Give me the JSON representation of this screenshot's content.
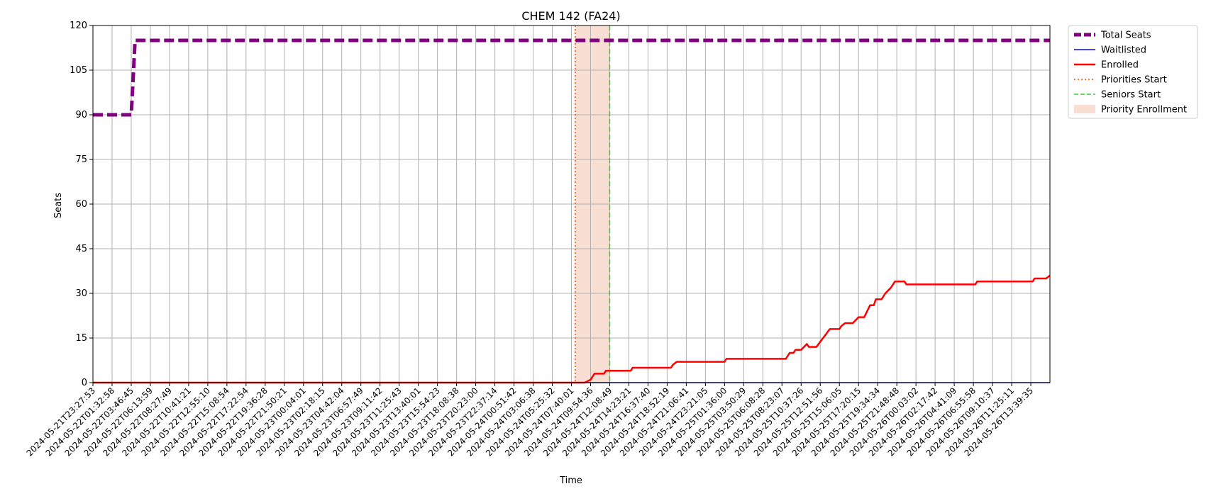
{
  "chart_data": {
    "type": "line",
    "title": "CHEM 142 (FA24)",
    "xlabel": "Time",
    "ylabel": "Seats",
    "ylim": [
      0,
      120
    ],
    "yticks": [
      0,
      15,
      30,
      45,
      60,
      75,
      90,
      105,
      120
    ],
    "grid": true,
    "legend_placement": "outside-top-right",
    "x_tick_labels": [
      "2024-05-21T23:27:53",
      "2024-05-22T01:32:58",
      "2024-05-22T03:46:45",
      "2024-05-22T06:13:59",
      "2024-05-22T08:27:49",
      "2024-05-22T10:41:21",
      "2024-05-22T12:55:10",
      "2024-05-22T15:08:54",
      "2024-05-22T17:22:54",
      "2024-05-22T19:36:28",
      "2024-05-22T21:50:21",
      "2024-05-23T00:04:01",
      "2024-05-23T02:18:15",
      "2024-05-23T04:42:04",
      "2024-05-23T06:57:49",
      "2024-05-23T09:11:42",
      "2024-05-23T11:25:43",
      "2024-05-23T13:40:01",
      "2024-05-23T15:54:23",
      "2024-05-23T18:08:38",
      "2024-05-23T20:23:00",
      "2024-05-23T22:37:14",
      "2024-05-24T00:51:42",
      "2024-05-24T03:06:38",
      "2024-05-24T05:25:32",
      "2024-05-24T07:40:01",
      "2024-05-24T09:54:36",
      "2024-05-24T12:08:49",
      "2024-05-24T14:23:21",
      "2024-05-24T16:37:40",
      "2024-05-24T18:52:19",
      "2024-05-24T21:06:41",
      "2024-05-24T23:21:05",
      "2024-05-25T01:36:00",
      "2024-05-25T03:50:29",
      "2024-05-25T06:08:28",
      "2024-05-25T08:23:07",
      "2024-05-25T10:37:26",
      "2024-05-25T12:51:56",
      "2024-05-25T15:06:05",
      "2024-05-25T17:20:15",
      "2024-05-25T19:34:34",
      "2024-05-25T21:48:48",
      "2024-05-26T00:03:02",
      "2024-05-26T02:17:42",
      "2024-05-26T04:41:09",
      "2024-05-26T06:55:58",
      "2024-05-26T09:10:37",
      "2024-05-26T11:25:11",
      "2024-05-26T13:39:35"
    ],
    "x_extent": [
      0,
      50
    ],
    "series": [
      {
        "name": "Total Seats",
        "color": "#800080",
        "style": "dashed",
        "points": [
          [
            0,
            90
          ],
          [
            2.0,
            90
          ],
          [
            2.2,
            115
          ],
          [
            50,
            115
          ]
        ]
      },
      {
        "name": "Waitlisted",
        "color": "#0000ff",
        "style": "solid",
        "points": [
          [
            0,
            0
          ],
          [
            50,
            0
          ]
        ]
      },
      {
        "name": "Enrolled",
        "color": "#ff0000",
        "style": "solid",
        "points": [
          [
            0,
            0
          ],
          [
            25.7,
            0
          ],
          [
            26.0,
            1
          ],
          [
            26.2,
            3
          ],
          [
            26.7,
            3
          ],
          [
            26.8,
            4
          ],
          [
            28.1,
            4
          ],
          [
            28.2,
            5
          ],
          [
            30.2,
            5
          ],
          [
            30.3,
            6
          ],
          [
            30.5,
            7
          ],
          [
            33.0,
            7
          ],
          [
            33.1,
            8
          ],
          [
            36.2,
            8
          ],
          [
            36.4,
            10
          ],
          [
            36.6,
            10
          ],
          [
            36.7,
            11
          ],
          [
            37.0,
            11
          ],
          [
            37.3,
            13
          ],
          [
            37.4,
            12
          ],
          [
            37.8,
            12
          ],
          [
            38.5,
            18
          ],
          [
            39.0,
            18
          ],
          [
            39.1,
            19
          ],
          [
            39.3,
            20
          ],
          [
            39.7,
            20
          ],
          [
            40.0,
            22
          ],
          [
            40.3,
            22
          ],
          [
            40.6,
            26
          ],
          [
            40.8,
            26
          ],
          [
            40.9,
            28
          ],
          [
            41.2,
            28
          ],
          [
            41.4,
            30
          ],
          [
            41.7,
            32
          ],
          [
            41.9,
            34
          ],
          [
            42.4,
            34
          ],
          [
            42.5,
            33
          ],
          [
            46.1,
            33
          ],
          [
            46.2,
            34
          ],
          [
            49.1,
            34
          ],
          [
            49.2,
            35
          ],
          [
            49.8,
            35
          ],
          [
            50,
            36
          ]
        ]
      }
    ],
    "markers": [
      {
        "name": "Priorities Start",
        "color": "#ff4500",
        "style": "dotted",
        "x": 25.2
      },
      {
        "name": "Seniors Start",
        "color": "#32cd32",
        "style": "dashed",
        "x": 27.0
      }
    ],
    "spans": [
      {
        "name": "Priority Enrollment",
        "color": "#f5c9b6",
        "from": 25.2,
        "to": 27.0
      }
    ]
  }
}
